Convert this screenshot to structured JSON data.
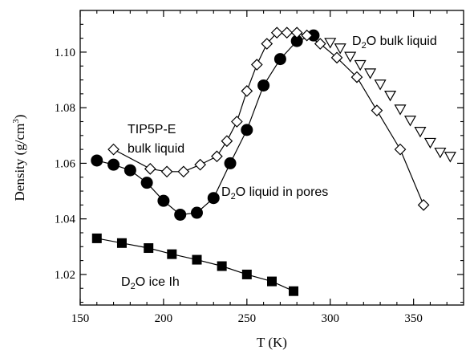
{
  "chart_data": {
    "type": "scatter",
    "xlabel": "T (K)",
    "ylabel_main": "Density (g/cm",
    "ylabel_sup": "3",
    "ylabel_end": ")",
    "xlim": [
      150,
      380
    ],
    "ylim": [
      1.009,
      1.115
    ],
    "xticks": [
      150,
      200,
      250,
      300,
      350
    ],
    "yticks": [
      1.02,
      1.04,
      1.06,
      1.08,
      1.1
    ],
    "ytick_labels": [
      "1.02",
      "1.04",
      "1.06",
      "1.08",
      "1.10"
    ],
    "xminor_step": 10,
    "yminor_step": 0.005,
    "grid": false,
    "series": [
      {
        "marker": "square-filled",
        "connected": true,
        "x": [
          160,
          175,
          191,
          205,
          220,
          235,
          250,
          265,
          278
        ],
        "y": [
          1.033,
          1.0313,
          1.0295,
          1.0273,
          1.0253,
          1.023,
          1.02,
          1.0175,
          1.014
        ]
      },
      {
        "marker": "circle-filled",
        "connected": true,
        "x": [
          160,
          170,
          180,
          190,
          200,
          210,
          220,
          230,
          240,
          250,
          260,
          270,
          280,
          290
        ],
        "y": [
          1.061,
          1.0595,
          1.0575,
          1.053,
          1.0465,
          1.0415,
          1.0422,
          1.0475,
          1.06,
          1.072,
          1.088,
          1.0975,
          1.104,
          1.106
        ]
      },
      {
        "marker": "diamond-open",
        "connected": true,
        "x": [
          170,
          192,
          202,
          212,
          222,
          232,
          238,
          244,
          250,
          256,
          262,
          268,
          274,
          280,
          286,
          294,
          304,
          316,
          328,
          342,
          356
        ],
        "y": [
          1.065,
          1.058,
          1.057,
          1.057,
          1.0595,
          1.0625,
          1.068,
          1.075,
          1.086,
          1.0955,
          1.103,
          1.107,
          1.107,
          1.107,
          1.106,
          1.103,
          1.098,
          1.091,
          1.079,
          1.065,
          1.045
        ]
      },
      {
        "marker": "triangle-down-open",
        "connected": false,
        "x": [
          300,
          306,
          312,
          318,
          324,
          330,
          336,
          342,
          348,
          354,
          360,
          366,
          372
        ],
        "y": [
          1.1035,
          1.1015,
          1.0985,
          1.0955,
          1.0925,
          1.0885,
          1.0845,
          1.0795,
          1.0755,
          1.0715,
          1.0675,
          1.064,
          1.0625
        ]
      }
    ],
    "annotations": [
      {
        "id": "tip5pe-line1",
        "parts": [
          "TIP5P-E"
        ]
      },
      {
        "id": "tip5pe-line2",
        "parts": [
          "bulk liquid"
        ]
      },
      {
        "id": "d2o-bulk",
        "parts": [
          "D",
          "2",
          "O bulk liquid"
        ]
      },
      {
        "id": "d2o-pores",
        "parts": [
          "D",
          "2",
          "O liquid in pores"
        ]
      },
      {
        "id": "d2o-ice",
        "parts": [
          "D",
          "2",
          "O ice Ih"
        ]
      }
    ]
  }
}
